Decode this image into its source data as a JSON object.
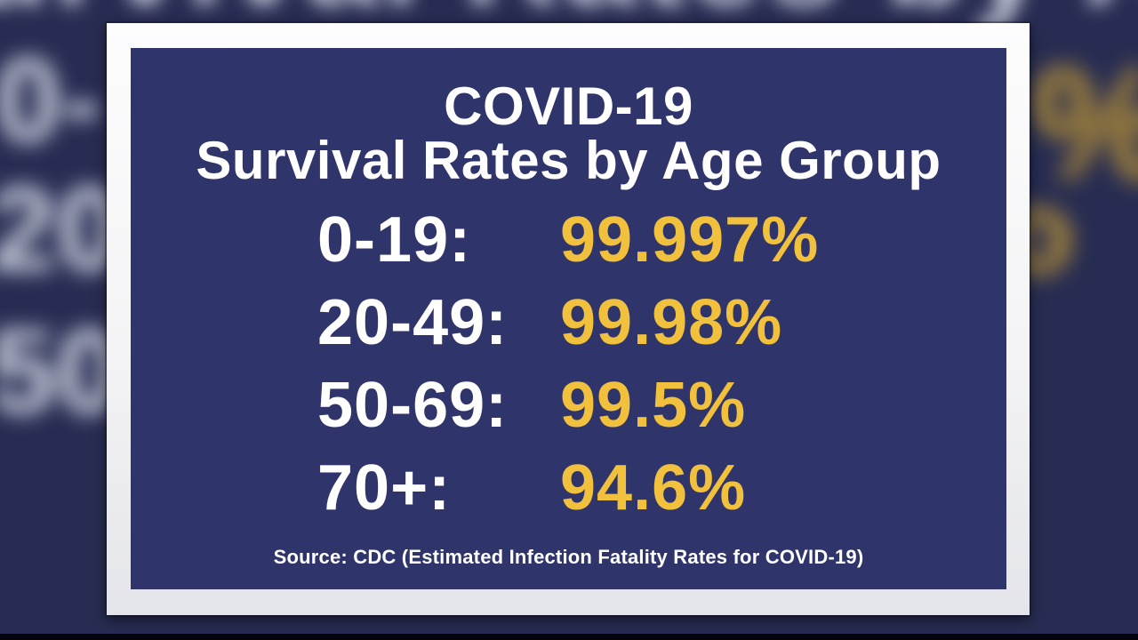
{
  "card": {
    "title_line1": "COVID-19",
    "title_line2": "Survival Rates by Age Group",
    "rows": [
      {
        "label": "0-19:",
        "value": "99.997%"
      },
      {
        "label": "20-49:",
        "value": "99.98%"
      },
      {
        "label": "50-69:",
        "value": "99.5%"
      },
      {
        "label": "70+:",
        "value": "94.6%"
      }
    ],
    "source": "Source: CDC (Estimated Infection Fatality Rates for COVID-19)"
  },
  "background": {
    "top_blur_text": "Survival Rates by Age Group",
    "left_fragments": [
      "0-",
      "20",
      "50"
    ],
    "right_fragments": [
      "%",
      "o"
    ]
  },
  "colors": {
    "panel_navy": "#2f356a",
    "backdrop_navy": "#272c52",
    "accent_yellow": "#f1c13e",
    "text_white": "#ffffff",
    "frame_white": "#f4f4f6"
  },
  "chart_data": {
    "type": "table",
    "title": "COVID-19 Survival Rates by Age Group",
    "categories": [
      "0-19",
      "20-49",
      "50-69",
      "70+"
    ],
    "values": [
      99.997,
      99.98,
      99.5,
      94.6
    ],
    "unit": "%",
    "value_label": "Survival Rate",
    "source": "Source: CDC (Estimated Infection Fatality Rates for COVID-19)"
  }
}
